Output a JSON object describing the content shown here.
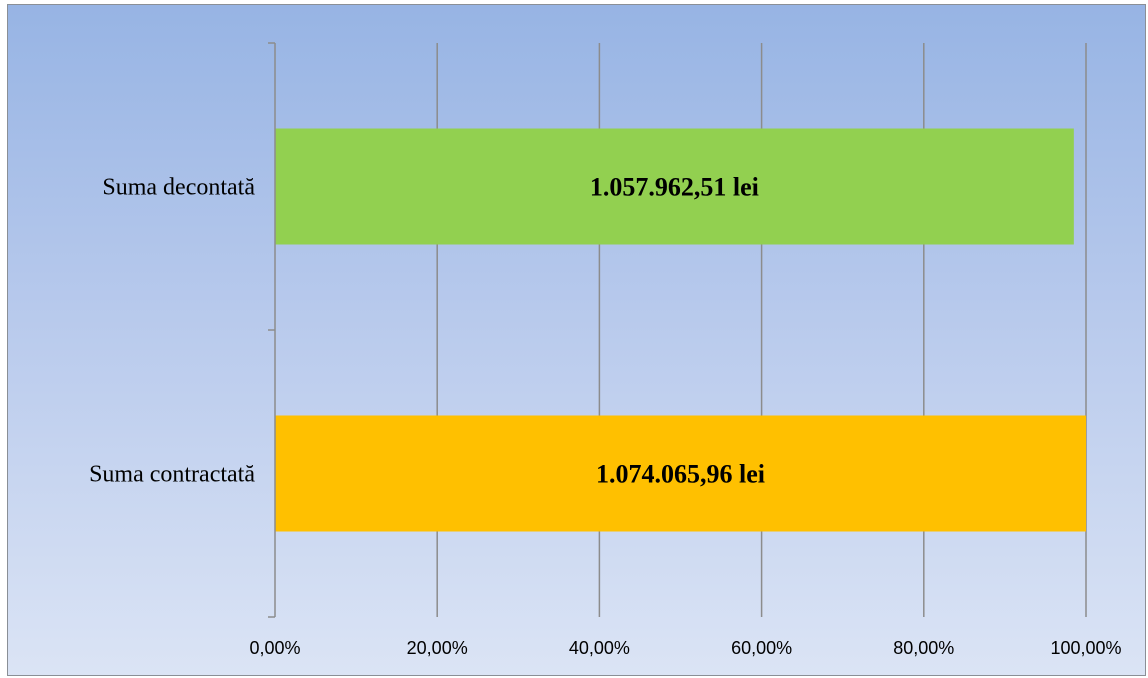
{
  "chart_data": {
    "type": "bar",
    "orientation": "horizontal",
    "title": "",
    "xlabel": "",
    "ylabel": "",
    "categories": [
      "Suma contractată",
      "Suma decontată"
    ],
    "values": [
      100.0,
      98.5
    ],
    "data_labels": [
      "1.074.065,96 lei",
      "1.057.962,51 lei"
    ],
    "bar_colors": [
      "#FFC000",
      "#92D050"
    ],
    "xlim": [
      0,
      100
    ],
    "x_ticks": [
      0,
      20,
      40,
      60,
      80,
      100
    ],
    "x_tick_labels": [
      "0,00%",
      "20,00%",
      "40,00%",
      "60,00%",
      "80,00%",
      "100,00%"
    ],
    "grid": true,
    "legend": "none",
    "background": "light-blue gradient"
  }
}
